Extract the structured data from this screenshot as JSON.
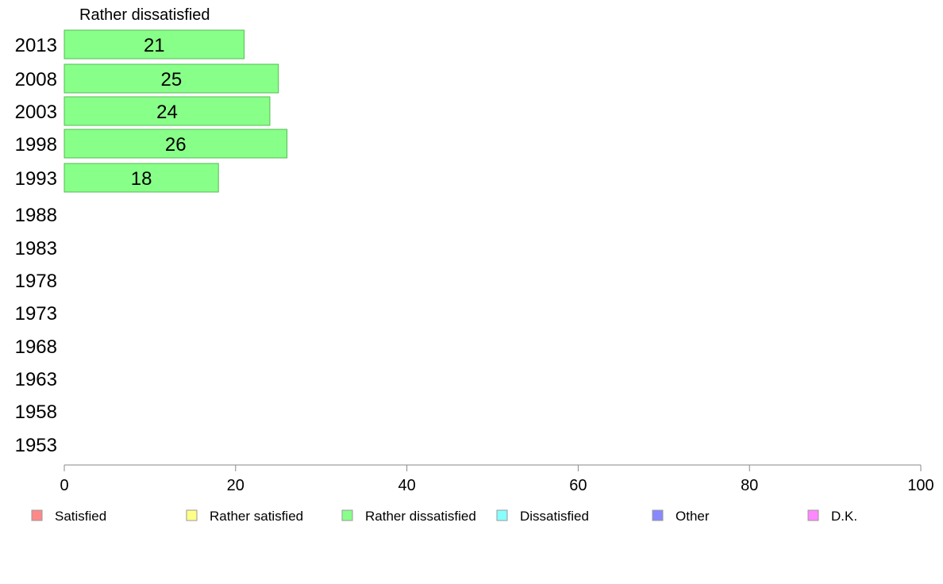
{
  "chart_data": {
    "type": "bar",
    "orientation": "horizontal",
    "title": "Rather dissatisfied",
    "categories": [
      "2013",
      "2008",
      "2003",
      "1998",
      "1993",
      "1988",
      "1983",
      "1978",
      "1973",
      "1968",
      "1963",
      "1958",
      "1953"
    ],
    "series": [
      {
        "name": "Rather dissatisfied",
        "color": "#88ff88",
        "values": [
          21,
          25,
          24,
          26,
          18,
          null,
          null,
          null,
          null,
          null,
          null,
          null,
          null
        ]
      }
    ],
    "xlim": [
      0,
      100
    ],
    "xticks": [
      0,
      20,
      40,
      60,
      80,
      100
    ],
    "grid": false,
    "legend_position": "bottom",
    "legend": [
      {
        "label": "Satisfied",
        "color": "#ff8888"
      },
      {
        "label": "Rather satisfied",
        "color": "#ffff88"
      },
      {
        "label": "Rather dissatisfied",
        "color": "#88ff88"
      },
      {
        "label": "Dissatisfied",
        "color": "#88ffff"
      },
      {
        "label": "Other",
        "color": "#8888ff"
      },
      {
        "label": "D.K.",
        "color": "#ff88ff"
      }
    ]
  }
}
